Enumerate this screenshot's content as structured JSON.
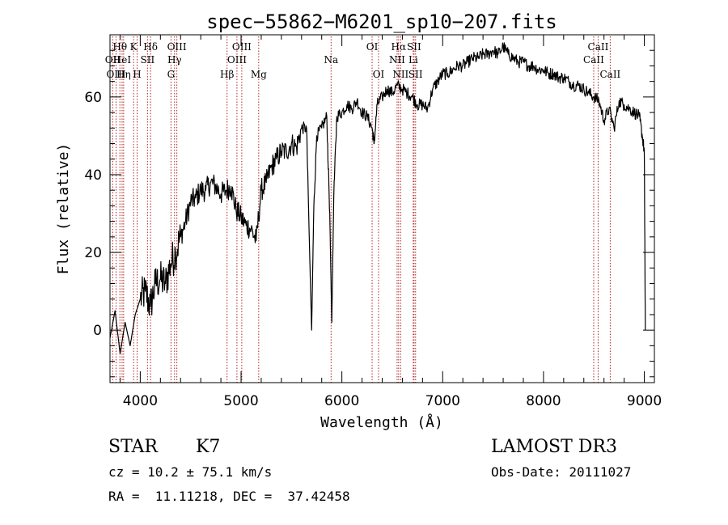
{
  "chart_data": {
    "type": "line",
    "title": "spec−55862−M6201_sp10−207.fits",
    "xlabel": "Wavelength (Å)",
    "ylabel": "Flux (relative)",
    "xlim": [
      3700,
      9100
    ],
    "ylim": [
      -13.5,
      76
    ],
    "xticks": [
      4000,
      5000,
      6000,
      7000,
      8000,
      9000
    ],
    "xtick_labels": [
      "4000",
      "5000",
      "6000",
      "7000",
      "8000",
      "9000"
    ],
    "yticks": [
      0,
      20,
      40,
      60
    ],
    "ytick_labels": [
      "0",
      "20",
      "40",
      "60"
    ],
    "series": [
      {
        "name": "flux",
        "x": [
          3700,
          3750,
          3800,
          3850,
          3900,
          3950,
          4000,
          4050,
          4100,
          4150,
          4200,
          4250,
          4300,
          4350,
          4400,
          4450,
          4500,
          4550,
          4600,
          4650,
          4700,
          4750,
          4800,
          4850,
          4900,
          4950,
          5000,
          5050,
          5100,
          5150,
          5200,
          5250,
          5300,
          5350,
          5400,
          5450,
          5500,
          5550,
          5600,
          5650,
          5680,
          5700,
          5720,
          5750,
          5800,
          5850,
          5880,
          5900,
          5920,
          5950,
          6000,
          6050,
          6100,
          6150,
          6200,
          6250,
          6300,
          6320,
          6350,
          6400,
          6450,
          6500,
          6550,
          6600,
          6650,
          6700,
          6750,
          6800,
          6850,
          6900,
          6950,
          7000,
          7050,
          7100,
          7150,
          7200,
          7250,
          7300,
          7350,
          7400,
          7450,
          7500,
          7550,
          7600,
          7650,
          7700,
          7750,
          7800,
          7850,
          7900,
          7950,
          8000,
          8050,
          8100,
          8150,
          8200,
          8250,
          8300,
          8350,
          8400,
          8450,
          8500,
          8550,
          8600,
          8650,
          8700,
          8750,
          8800,
          8850,
          8900,
          8950,
          8980,
          9000,
          9010
        ],
        "values": [
          -2,
          5,
          -6,
          2,
          -4,
          4,
          8,
          10,
          6,
          12,
          13,
          12,
          17,
          20,
          24,
          28,
          33,
          34,
          36,
          36,
          38,
          37,
          35,
          36,
          37,
          31,
          29,
          27,
          26,
          23,
          36,
          38,
          42,
          44,
          46,
          46,
          48,
          47,
          52,
          52,
          20,
          0,
          30,
          50,
          52,
          55,
          30,
          2,
          35,
          55,
          56,
          58,
          57,
          59,
          56,
          55,
          52,
          48,
          58,
          60,
          62,
          61,
          63,
          62,
          61,
          60,
          58,
          58,
          57,
          62,
          64,
          66,
          66,
          67,
          68,
          68,
          69,
          70,
          70,
          71,
          71,
          72,
          71,
          73,
          71,
          70,
          69,
          69,
          68,
          68,
          67,
          67,
          66,
          66,
          65,
          65,
          64,
          63,
          63,
          62,
          61,
          60,
          59,
          54,
          57,
          52,
          59,
          58,
          57,
          56,
          55,
          50,
          46,
          0
        ]
      }
    ],
    "spectral_lines": [
      {
        "label": "Hθ",
        "wavelength": 3798,
        "row": 1
      },
      {
        "label": "OII",
        "wavelength": 3727,
        "row": 2
      },
      {
        "label": "OIII",
        "wavelength": 3760,
        "row": 3
      },
      {
        "label": "HeI",
        "wavelength": 3820,
        "row": 2
      },
      {
        "label": "Hη",
        "wavelength": 3835,
        "row": 3
      },
      {
        "label": "K",
        "wavelength": 3934,
        "row": 1
      },
      {
        "label": "SII",
        "wavelength": 4072,
        "row": 2
      },
      {
        "label": "H",
        "wavelength": 3969,
        "row": 3
      },
      {
        "label": "Hδ",
        "wavelength": 4102,
        "row": 1
      },
      {
        "label": "OIII",
        "wavelength": 4363,
        "row": 1
      },
      {
        "label": "Hγ",
        "wavelength": 4340,
        "row": 2
      },
      {
        "label": "G",
        "wavelength": 4305,
        "row": 3
      },
      {
        "label": "Hβ",
        "wavelength": 4861,
        "row": 3
      },
      {
        "label": "OIII",
        "wavelength": 5007,
        "row": 1
      },
      {
        "label": "OIII",
        "wavelength": 4959,
        "row": 2
      },
      {
        "label": "Mg",
        "wavelength": 5175,
        "row": 3
      },
      {
        "label": "Na",
        "wavelength": 5893,
        "row": 2
      },
      {
        "label": "OI",
        "wavelength": 6300,
        "row": 1
      },
      {
        "label": "OI",
        "wavelength": 6364,
        "row": 3
      },
      {
        "label": "Hα",
        "wavelength": 6563,
        "row": 1
      },
      {
        "label": "SII",
        "wavelength": 6716,
        "row": 1
      },
      {
        "label": "NII",
        "wavelength": 6548,
        "row": 2
      },
      {
        "label": "Li",
        "wavelength": 6708,
        "row": 2
      },
      {
        "label": "NII",
        "wavelength": 6583,
        "row": 3
      },
      {
        "label": "SII",
        "wavelength": 6731,
        "row": 3
      },
      {
        "label": "CaII",
        "wavelength": 8542,
        "row": 1
      },
      {
        "label": "CaII",
        "wavelength": 8498,
        "row": 2
      },
      {
        "label": "CaII",
        "wavelength": 8662,
        "row": 3
      }
    ]
  },
  "info": {
    "class": "STAR",
    "subclass": "K7",
    "survey": "LAMOST DR3",
    "cz": "cz = 10.2 ± 75.1 km/s",
    "obs_date": "Obs-Date: 20111027",
    "radec": "RA =  11.11218, DEC =  37.42458"
  },
  "colors": {
    "line_marker": "#b22222",
    "spectrum": "#000000"
  }
}
